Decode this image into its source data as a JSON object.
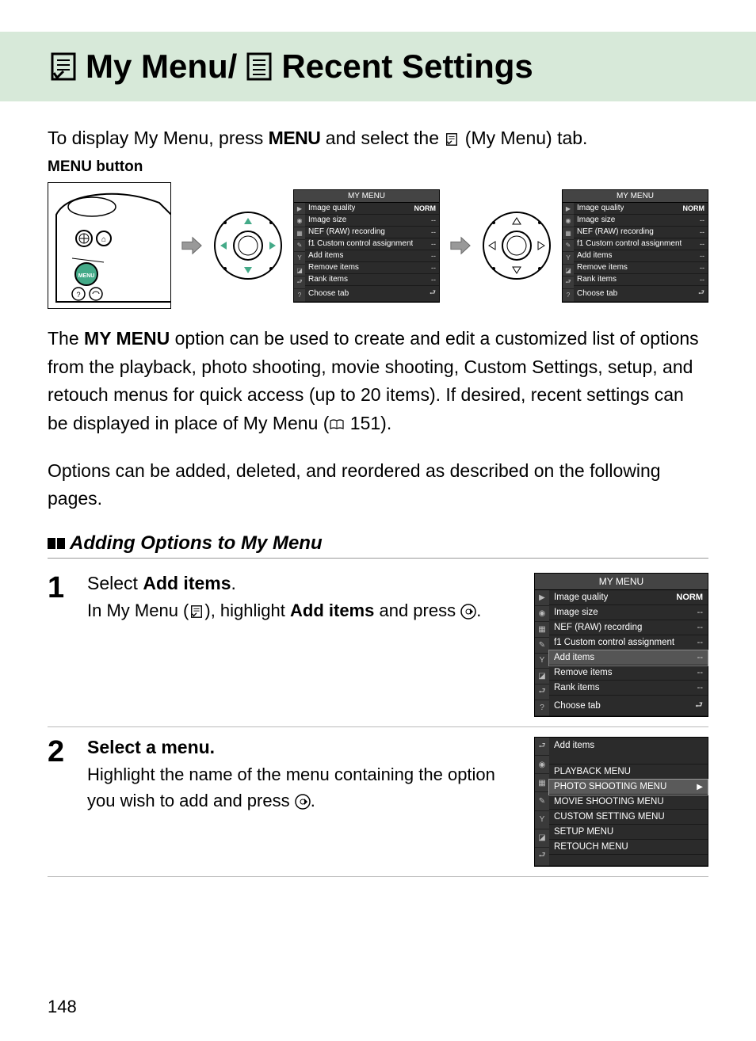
{
  "header": {
    "title_part1": "My Menu/",
    "title_part2": "Recent Settings"
  },
  "intro": {
    "text_before": "To display My Menu, press ",
    "menu_word": "MENU",
    "text_after": " and select the ",
    "tab_label": " (My Menu) tab."
  },
  "menu_button_label": {
    "menu_word": "MENU",
    "rest": " button"
  },
  "menu_screens": {
    "header": "MY MENU",
    "rows": [
      {
        "label": "Image quality",
        "val": "NORM",
        "norm": true
      },
      {
        "label": "Image size",
        "val": "--"
      },
      {
        "label": "NEF (RAW) recording",
        "val": "--"
      },
      {
        "label": "f1 Custom control assignment",
        "val": "--"
      },
      {
        "label": "Add items",
        "val": "--"
      },
      {
        "label": "Remove items",
        "val": "--"
      },
      {
        "label": "Rank items",
        "val": "--"
      },
      {
        "label": "Choose tab",
        "val": "⮐"
      }
    ],
    "sidebar_icons": [
      "▶",
      "◉",
      "▦",
      "✎",
      "Y",
      "◪",
      "⮐",
      "?"
    ]
  },
  "body_para1": {
    "before_bold": "The ",
    "bold": "MY MENU",
    "after_bold": " option can be used to create and edit a customized list of options from the playback, photo shooting, movie shooting, Custom Settings, setup, and retouch menus for quick access (up to 20 items).  If desired, recent settings can be displayed in place of My Menu (",
    "page_ref": " 151)."
  },
  "body_para2": "Options can be added, deleted, and reordered as described on the following pages.",
  "section_heading": "Adding Options to My Menu",
  "steps": [
    {
      "num": "1",
      "title_before": "Select ",
      "title_bold": "Add items",
      "title_after": ".",
      "desc_before": "In My Menu (",
      "desc_mid": "), highlight ",
      "desc_bold": "Add items",
      "desc_after": " and press ",
      "desc_end": "."
    },
    {
      "num": "2",
      "title_before": "Select a menu.",
      "title_bold": "",
      "title_after": "",
      "desc_before": "Highlight the name of the menu containing the option you wish to add and press ",
      "desc_mid": "",
      "desc_bold": "",
      "desc_after": "",
      "desc_end": "."
    }
  ],
  "step1_screen": {
    "header": "MY MENU",
    "highlight_index": 4,
    "rows": [
      {
        "label": "Image quality",
        "val": "NORM",
        "norm": true
      },
      {
        "label": "Image size",
        "val": "--"
      },
      {
        "label": "NEF (RAW) recording",
        "val": "--"
      },
      {
        "label": "f1 Custom control assignment",
        "val": "--"
      },
      {
        "label": "Add items",
        "val": "--"
      },
      {
        "label": "Remove items",
        "val": "--"
      },
      {
        "label": "Rank items",
        "val": "--"
      },
      {
        "label": "Choose tab",
        "val": "⮐"
      }
    ]
  },
  "step2_screen": {
    "header": "Add items",
    "highlight_index": 1,
    "rows": [
      {
        "label": "PLAYBACK MENU"
      },
      {
        "label": "PHOTO SHOOTING MENU",
        "arrow": true
      },
      {
        "label": "MOVIE SHOOTING MENU"
      },
      {
        "label": "CUSTOM SETTING MENU"
      },
      {
        "label": "SETUP MENU"
      },
      {
        "label": "RETOUCH MENU"
      }
    ]
  },
  "page_number": "148",
  "colors": {
    "header_bg": "#d7e9d9",
    "screen_bg": "#2b2b2b",
    "screen_header_bg": "#444444",
    "screen_sidebar_bg": "#3a3a3a",
    "highlight_bg": "#555555"
  }
}
